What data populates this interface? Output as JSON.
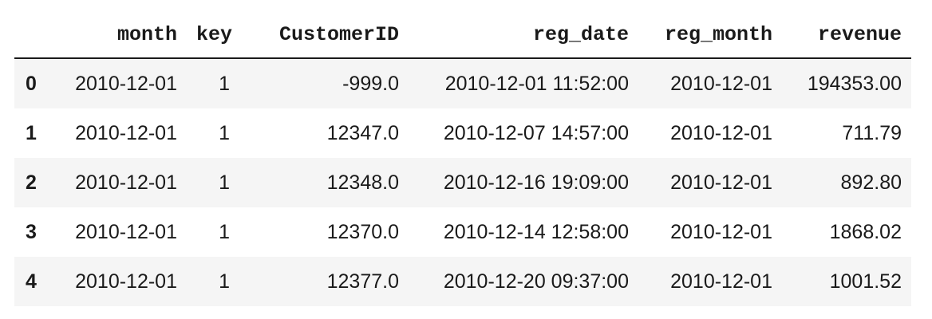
{
  "table": {
    "columns": [
      "",
      "month",
      "key",
      "CustomerID",
      "reg_date",
      "reg_month",
      "revenue"
    ],
    "rows": [
      {
        "index": "0",
        "month": "2010-12-01",
        "key": "1",
        "CustomerID": "-999.0",
        "reg_date": "2010-12-01 11:52:00",
        "reg_month": "2010-12-01",
        "revenue": "194353.00"
      },
      {
        "index": "1",
        "month": "2010-12-01",
        "key": "1",
        "CustomerID": "12347.0",
        "reg_date": "2010-12-07 14:57:00",
        "reg_month": "2010-12-01",
        "revenue": "711.79"
      },
      {
        "index": "2",
        "month": "2010-12-01",
        "key": "1",
        "CustomerID": "12348.0",
        "reg_date": "2010-12-16 19:09:00",
        "reg_month": "2010-12-01",
        "revenue": "892.80"
      },
      {
        "index": "3",
        "month": "2010-12-01",
        "key": "1",
        "CustomerID": "12370.0",
        "reg_date": "2010-12-14 12:58:00",
        "reg_month": "2010-12-01",
        "revenue": "1868.02"
      },
      {
        "index": "4",
        "month": "2010-12-01",
        "key": "1",
        "CustomerID": "12377.0",
        "reg_date": "2010-12-20 09:37:00",
        "reg_month": "2010-12-01",
        "revenue": "1001.52"
      }
    ]
  },
  "colors": {
    "stripe": "#f5f5f5",
    "text": "#1a1a1a",
    "header_rule": "#1a1a1a"
  }
}
